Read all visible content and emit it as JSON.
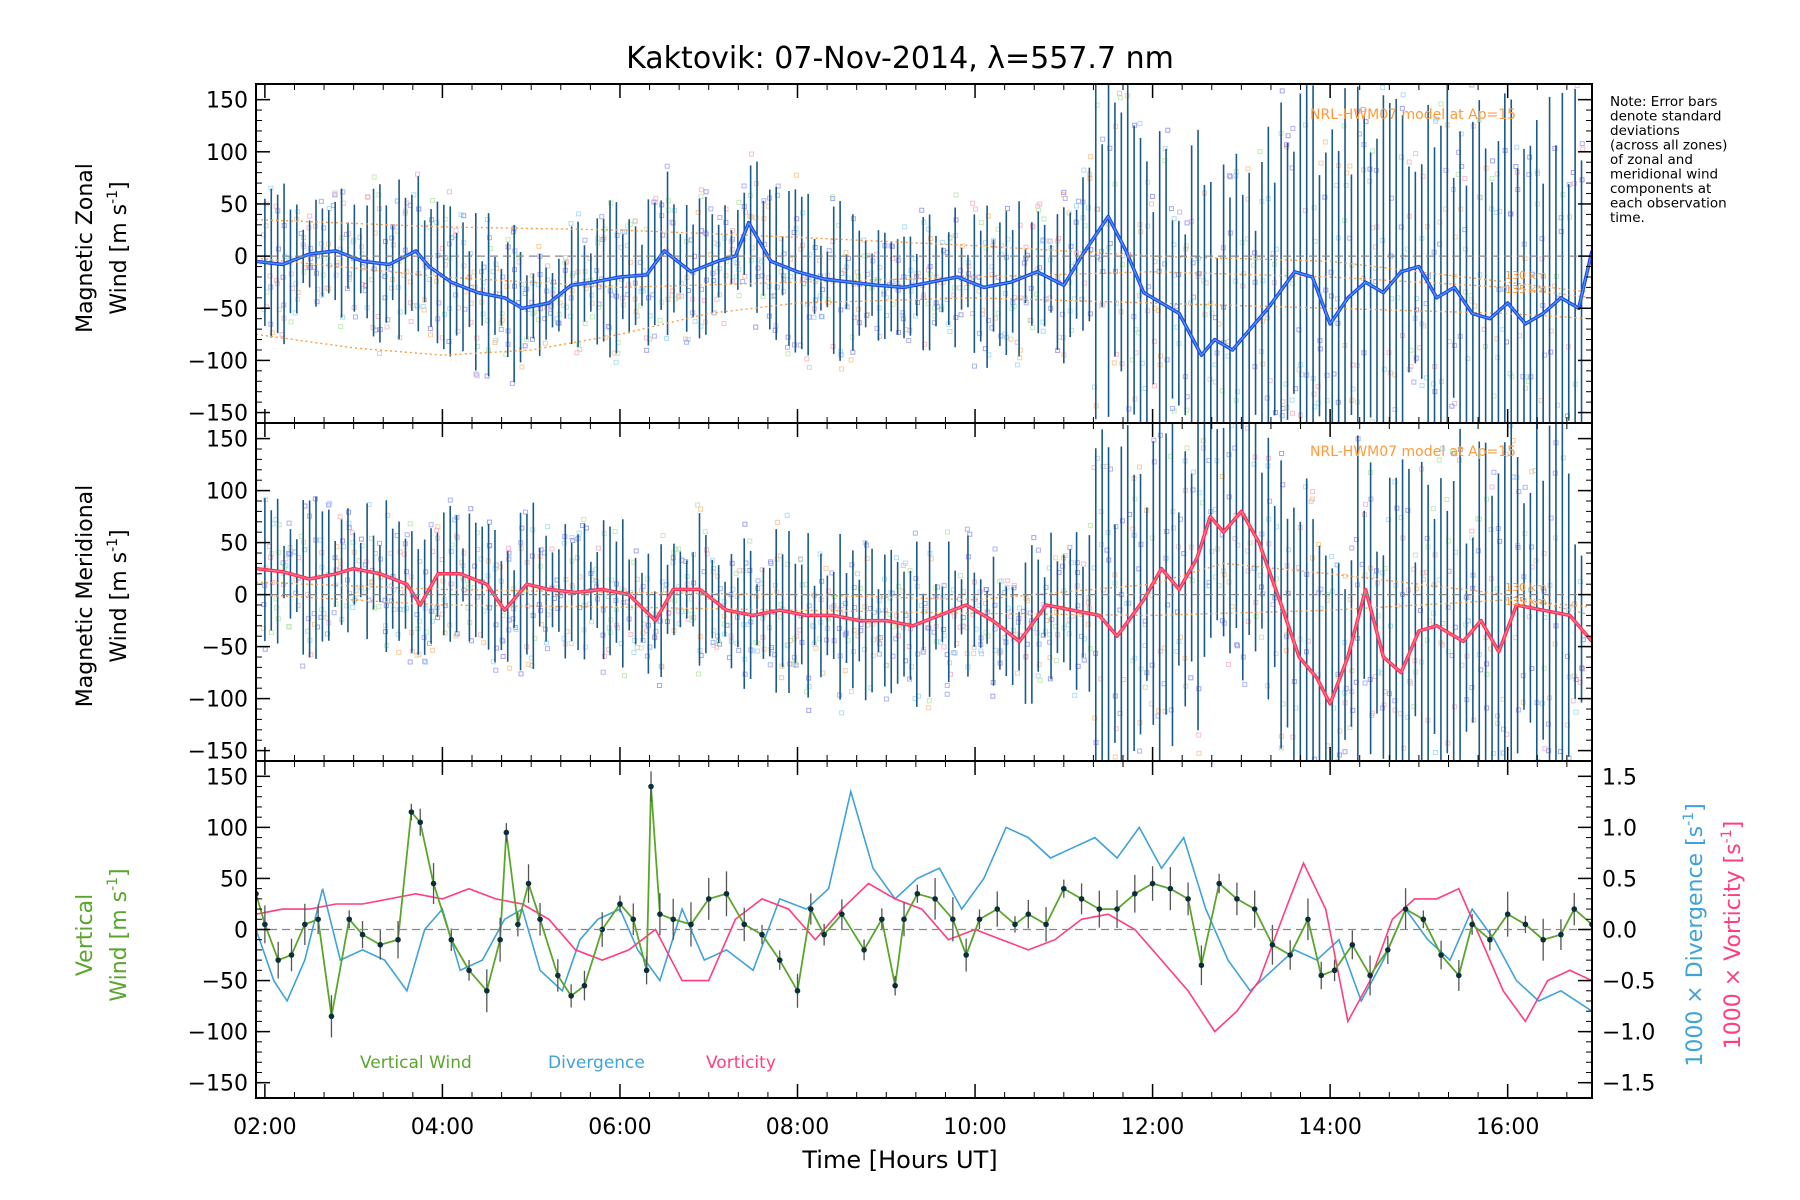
{
  "chart_data": [
    {
      "type": "line",
      "panel": "zonal",
      "title": "Kaktovik: 07-Nov-2014, λ=557.7 nm",
      "ylabel_line1": "Magnetic Zonal",
      "ylabel_line2": "Wind [m s",
      "ylabel_exp": "-1",
      "ylabel_close": "]",
      "ylim": [
        -160,
        165
      ],
      "yticks": [
        150,
        100,
        50,
        0,
        -50,
        -100,
        -150
      ],
      "xlim": [
        1.9,
        16.95
      ],
      "model_label": "NRL-HWM07 model at Ap=15",
      "model_alt_labels": [
        "130 km",
        "135 km"
      ],
      "series": [
        {
          "name": "Magnetic Zonal Wind (mean)",
          "color": "#1f3fe0",
          "x": [
            1.9,
            2.2,
            2.5,
            2.8,
            3.1,
            3.4,
            3.7,
            3.85,
            4.1,
            4.4,
            4.7,
            4.9,
            5.2,
            5.45,
            5.7,
            6.0,
            6.3,
            6.5,
            6.8,
            7.1,
            7.3,
            7.45,
            7.7,
            8.0,
            8.3,
            8.6,
            8.9,
            9.2,
            9.5,
            9.8,
            10.1,
            10.4,
            10.7,
            11.0,
            11.2,
            11.5,
            11.7,
            11.9,
            12.1,
            12.3,
            12.55,
            12.7,
            12.9,
            13.1,
            13.3,
            13.6,
            13.8,
            14.0,
            14.2,
            14.4,
            14.6,
            14.8,
            15.0,
            15.2,
            15.4,
            15.6,
            15.8,
            16.0,
            16.2,
            16.4,
            16.6,
            16.8,
            16.95
          ],
          "y": [
            -5,
            -8,
            2,
            5,
            -5,
            -8,
            5,
            -10,
            -25,
            -35,
            -40,
            -50,
            -45,
            -28,
            -25,
            -20,
            -18,
            5,
            -15,
            -5,
            0,
            32,
            -5,
            -15,
            -22,
            -25,
            -28,
            -30,
            -25,
            -20,
            -30,
            -25,
            -15,
            -28,
            0,
            38,
            5,
            -35,
            -45,
            -55,
            -95,
            -80,
            -90,
            -70,
            -50,
            -15,
            -20,
            -65,
            -40,
            -25,
            -35,
            -15,
            -10,
            -40,
            -30,
            -55,
            -60,
            -45,
            -65,
            -55,
            -40,
            -50,
            5
          ]
        }
      ],
      "model_curves": [
        {
          "name": "model-upper",
          "x": [
            1.9,
            4,
            6,
            8,
            10,
            12,
            14,
            16,
            16.95
          ],
          "y": [
            35,
            28,
            25,
            18,
            10,
            0,
            -5,
            -25,
            -35
          ]
        },
        {
          "name": "model-mid",
          "x": [
            1.9,
            4,
            6,
            8,
            10,
            12,
            14,
            16,
            16.95
          ],
          "y": [
            -2,
            -20,
            -30,
            -25,
            -20,
            -15,
            -20,
            -30,
            -40
          ]
        },
        {
          "name": "model-lower",
          "x": [
            1.9,
            3,
            4,
            5,
            6,
            7,
            8,
            10,
            12,
            14,
            16,
            16.95
          ],
          "y": [
            -75,
            -88,
            -95,
            -90,
            -75,
            -55,
            -45,
            -40,
            -45,
            -50,
            -55,
            -60
          ]
        }
      ]
    },
    {
      "type": "line",
      "panel": "meridional",
      "ylabel_line1": "Magnetic Meridional",
      "ylabel_line2": "Wind [m s",
      "ylabel_exp": "-1",
      "ylabel_close": "]",
      "ylim": [
        -160,
        165
      ],
      "yticks": [
        150,
        100,
        50,
        0,
        -50,
        -100,
        -150
      ],
      "xlim": [
        1.9,
        16.95
      ],
      "model_label": "NRL-HWM07 model at Ap=15",
      "model_alt_labels": [
        "130 km",
        "135 km"
      ],
      "series": [
        {
          "name": "Magnetic Meridional Wind (mean)",
          "color": "#ff2a4a",
          "x": [
            1.9,
            2.2,
            2.5,
            2.8,
            3.0,
            3.3,
            3.6,
            3.75,
            3.95,
            4.2,
            4.5,
            4.7,
            4.95,
            5.2,
            5.5,
            5.8,
            6.1,
            6.4,
            6.6,
            6.9,
            7.2,
            7.5,
            7.8,
            8.1,
            8.4,
            8.7,
            9.0,
            9.3,
            9.6,
            9.9,
            10.2,
            10.5,
            10.8,
            11.1,
            11.4,
            11.6,
            11.9,
            12.1,
            12.3,
            12.5,
            12.65,
            12.8,
            13.0,
            13.2,
            13.45,
            13.65,
            13.85,
            14.0,
            14.2,
            14.4,
            14.6,
            14.8,
            15.0,
            15.2,
            15.5,
            15.7,
            15.9,
            16.1,
            16.4,
            16.7,
            16.95
          ],
          "y": [
            25,
            22,
            15,
            20,
            25,
            20,
            10,
            -10,
            20,
            20,
            10,
            -15,
            10,
            5,
            2,
            5,
            0,
            -25,
            5,
            5,
            -15,
            -20,
            -15,
            -20,
            -20,
            -25,
            -25,
            -30,
            -20,
            -10,
            -25,
            -45,
            -10,
            -15,
            -20,
            -40,
            -5,
            25,
            5,
            35,
            75,
            60,
            80,
            50,
            -10,
            -60,
            -80,
            -105,
            -60,
            5,
            -60,
            -75,
            -35,
            -30,
            -45,
            -25,
            -55,
            -10,
            -15,
            -20,
            -45
          ]
        }
      ],
      "model_curves": [
        {
          "name": "model-upper",
          "x": [
            1.9,
            4,
            6,
            8,
            10,
            12,
            12.8,
            14,
            16,
            16.95
          ],
          "y": [
            12,
            5,
            2,
            0,
            -5,
            10,
            30,
            20,
            0,
            -20
          ]
        },
        {
          "name": "model-lower",
          "x": [
            1.9,
            4,
            6,
            8,
            10,
            12,
            14,
            16,
            16.95
          ],
          "y": [
            0,
            -10,
            -12,
            -15,
            -18,
            -20,
            -15,
            -5,
            -12
          ]
        }
      ]
    },
    {
      "type": "line",
      "panel": "vertical",
      "ylabel_left_line1": "Vertical",
      "ylabel_left_line2": "Wind [m s",
      "ylabel_left_exp": "-1",
      "ylabel_left_close": "]",
      "ylabel_right_div": "1000 × Divergence [s",
      "ylabel_right_vort": "1000 × Vorticity [s",
      "ylabel_right_exp": "-1",
      "ylabel_right_close": "]",
      "ylim": [
        -165,
        165
      ],
      "yticks": [
        150,
        100,
        50,
        0,
        -50,
        -100,
        -150
      ],
      "y2lim": [
        -1.65,
        1.65
      ],
      "y2ticks": [
        "1.5",
        "1.0",
        "0.5",
        "0.0",
        "−0.5",
        "−1.0",
        "−1.5"
      ],
      "y2tick_values": [
        1.5,
        1.0,
        0.5,
        0.0,
        -0.5,
        -1.0,
        -1.5
      ],
      "xlim": [
        1.9,
        16.95
      ],
      "xlabel": "Time [Hours UT]",
      "xticks": [
        "02:00",
        "04:00",
        "06:00",
        "08:00",
        "10:00",
        "12:00",
        "14:00",
        "16:00"
      ],
      "xtick_values": [
        2,
        4,
        6,
        8,
        10,
        12,
        14,
        16
      ],
      "legend": [
        {
          "label": "Vertical Wind",
          "color": "#5aa62c"
        },
        {
          "label": "Divergence",
          "color": "#3fa2d8"
        },
        {
          "label": "Vorticity",
          "color": "#ff3d7f"
        }
      ],
      "series": [
        {
          "name": "Vertical Wind",
          "axis": "left",
          "color": "#5aa62c",
          "x": [
            1.9,
            2.0,
            2.15,
            2.3,
            2.45,
            2.6,
            2.75,
            2.95,
            3.1,
            3.3,
            3.5,
            3.65,
            3.75,
            3.9,
            4.1,
            4.3,
            4.5,
            4.65,
            4.72,
            4.85,
            4.97,
            5.1,
            5.3,
            5.45,
            5.6,
            5.8,
            6.0,
            6.15,
            6.3,
            6.35,
            6.45,
            6.6,
            6.8,
            7.0,
            7.2,
            7.4,
            7.6,
            7.8,
            8.0,
            8.15,
            8.3,
            8.5,
            8.75,
            8.95,
            9.1,
            9.2,
            9.35,
            9.55,
            9.75,
            9.9,
            10.05,
            10.25,
            10.45,
            10.6,
            10.8,
            11.0,
            11.2,
            11.4,
            11.6,
            11.8,
            12.0,
            12.2,
            12.4,
            12.55,
            12.75,
            12.95,
            13.15,
            13.35,
            13.55,
            13.75,
            13.9,
            14.05,
            14.25,
            14.45,
            14.65,
            14.85,
            15.05,
            15.25,
            15.45,
            15.6,
            15.8,
            16.0,
            16.2,
            16.4,
            16.6,
            16.75,
            16.95
          ],
          "y": [
            35,
            5,
            -30,
            -25,
            5,
            10,
            -85,
            10,
            -5,
            -15,
            -10,
            115,
            105,
            45,
            -10,
            -40,
            -60,
            -10,
            95,
            5,
            45,
            10,
            -45,
            -65,
            -55,
            0,
            25,
            10,
            -40,
            140,
            15,
            10,
            5,
            30,
            35,
            5,
            -5,
            -30,
            -60,
            20,
            -5,
            15,
            -20,
            10,
            -55,
            10,
            35,
            30,
            10,
            -25,
            10,
            20,
            5,
            15,
            5,
            40,
            30,
            20,
            20,
            35,
            45,
            40,
            30,
            -35,
            45,
            30,
            20,
            -15,
            -25,
            10,
            -45,
            -40,
            -15,
            -45,
            -20,
            20,
            10,
            -25,
            -45,
            5,
            -10,
            15,
            5,
            -10,
            -5,
            20,
            5
          ]
        },
        {
          "name": "Divergence",
          "axis": "right",
          "color": "#3fa2d8",
          "x": [
            1.9,
            2.1,
            2.25,
            2.45,
            2.65,
            2.85,
            3.1,
            3.35,
            3.6,
            3.8,
            4.0,
            4.2,
            4.45,
            4.7,
            4.9,
            5.1,
            5.35,
            5.55,
            5.75,
            6.0,
            6.2,
            6.45,
            6.7,
            6.95,
            7.2,
            7.5,
            7.8,
            8.1,
            8.35,
            8.6,
            8.85,
            9.1,
            9.35,
            9.6,
            9.85,
            10.1,
            10.35,
            10.6,
            10.85,
            11.1,
            11.35,
            11.6,
            11.85,
            12.1,
            12.35,
            12.6,
            12.85,
            13.1,
            13.35,
            13.6,
            13.85,
            14.1,
            14.35,
            14.6,
            14.85,
            15.1,
            15.35,
            15.6,
            15.85,
            16.1,
            16.35,
            16.6,
            16.95
          ],
          "y": [
            0.0,
            -0.5,
            -0.7,
            -0.3,
            0.4,
            -0.3,
            -0.2,
            -0.3,
            -0.6,
            0.0,
            0.2,
            -0.4,
            -0.3,
            0.1,
            0.2,
            -0.4,
            -0.6,
            -0.1,
            0.1,
            0.2,
            -0.2,
            -0.5,
            0.2,
            -0.3,
            -0.2,
            -0.4,
            0.3,
            0.2,
            0.4,
            1.35,
            0.6,
            0.3,
            0.5,
            0.6,
            0.2,
            0.5,
            1.0,
            0.9,
            0.7,
            0.8,
            0.9,
            0.7,
            1.0,
            0.6,
            0.9,
            0.2,
            -0.3,
            -0.6,
            -0.4,
            -0.2,
            -0.3,
            -0.1,
            -0.7,
            -0.3,
            0.2,
            -0.1,
            -0.3,
            0.2,
            -0.1,
            -0.5,
            -0.7,
            -0.6,
            -0.8
          ]
        },
        {
          "name": "Vorticity",
          "axis": "right",
          "color": "#ff3d7f",
          "x": [
            1.9,
            2.2,
            2.5,
            2.8,
            3.1,
            3.4,
            3.7,
            4.0,
            4.3,
            4.6,
            4.9,
            5.2,
            5.5,
            5.8,
            6.1,
            6.4,
            6.7,
            7.0,
            7.3,
            7.6,
            7.9,
            8.2,
            8.5,
            8.8,
            9.1,
            9.4,
            9.7,
            10.0,
            10.3,
            10.6,
            10.9,
            11.2,
            11.5,
            11.8,
            12.1,
            12.4,
            12.7,
            12.95,
            13.2,
            13.5,
            13.7,
            13.95,
            14.2,
            14.45,
            14.7,
            14.95,
            15.2,
            15.45,
            15.7,
            15.95,
            16.2,
            16.45,
            16.7,
            16.95
          ],
          "y": [
            0.15,
            0.2,
            0.2,
            0.25,
            0.25,
            0.3,
            0.35,
            0.3,
            0.4,
            0.3,
            0.25,
            0.1,
            -0.2,
            -0.3,
            -0.2,
            0.0,
            -0.5,
            -0.5,
            0.1,
            0.3,
            0.2,
            -0.1,
            0.2,
            0.45,
            0.3,
            0.2,
            -0.1,
            0.0,
            -0.1,
            -0.2,
            -0.1,
            0.1,
            0.15,
            0.0,
            -0.3,
            -0.6,
            -1.0,
            -0.8,
            -0.5,
            0.2,
            0.65,
            0.2,
            -0.9,
            -0.5,
            0.1,
            0.3,
            0.3,
            0.4,
            -0.1,
            -0.6,
            -0.9,
            -0.5,
            -0.4,
            -0.5
          ]
        }
      ]
    }
  ],
  "note": {
    "lines": [
      "Note: Error bars",
      "denote standard",
      "deviations",
      "(across all zones)",
      "of zonal and",
      "meridional wind",
      "components at",
      "each observation",
      "time."
    ]
  }
}
